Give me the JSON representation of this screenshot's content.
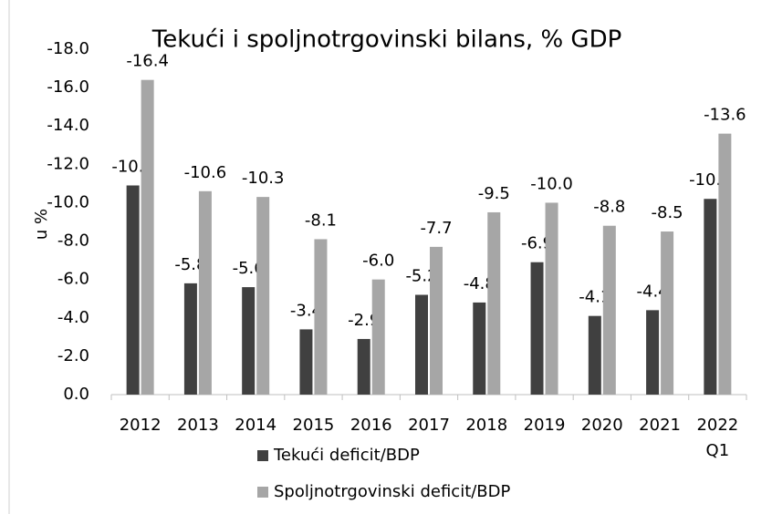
{
  "chart_data": {
    "type": "bar",
    "title": "Tekući i spoljnotrgovinski bilans, % GDP",
    "y_label": "u %",
    "categories": [
      "2012",
      "2013",
      "2014",
      "2015",
      "2016",
      "2017",
      "2018",
      "2019",
      "2020",
      "2021",
      "2022 Q1"
    ],
    "series": [
      {
        "name": "Tekući deficit/BDP",
        "color": "#404040",
        "values": [
          -10.9,
          -5.8,
          -5.6,
          -3.4,
          -2.9,
          -5.2,
          -4.8,
          -6.9,
          -4.1,
          -4.4,
          -10.2
        ],
        "value_labels": [
          "-10.9",
          "-5.8",
          "-5.6",
          "-3.4",
          "-2.9",
          "-5.2",
          "-4.8",
          "-6.9",
          "-4.1",
          "-4.4",
          "-10.2"
        ]
      },
      {
        "name": "Spoljnotrgovinski deficit/BDP",
        "color": "#a6a6a6",
        "values": [
          -16.4,
          -10.6,
          -10.3,
          -8.1,
          -6.0,
          -7.7,
          -9.5,
          -10.0,
          -8.8,
          -8.5,
          -13.6
        ],
        "value_labels": [
          "-16.4",
          "-10.6",
          "-10.3",
          "-8.1",
          "-6.0",
          "-7.7",
          "-9.5",
          "-10.0",
          "-8.8",
          "-8.5",
          "-13.6"
        ]
      }
    ],
    "ylim": [
      0,
      -18
    ],
    "yticks": [
      {
        "value": 0,
        "label": "0.0"
      },
      {
        "value": -2,
        "label": "-2.0"
      },
      {
        "value": -4,
        "label": "-4.0"
      },
      {
        "value": -6,
        "label": "-6.0"
      },
      {
        "value": -8,
        "label": "-8.0"
      },
      {
        "value": -10,
        "label": "-10.0"
      },
      {
        "value": -12,
        "label": "-12.0"
      },
      {
        "value": -14,
        "label": "-14.0"
      },
      {
        "value": -16,
        "label": "-16.0"
      },
      {
        "value": -18,
        "label": "-18.0"
      }
    ],
    "grid": false,
    "legend": "bottom"
  }
}
